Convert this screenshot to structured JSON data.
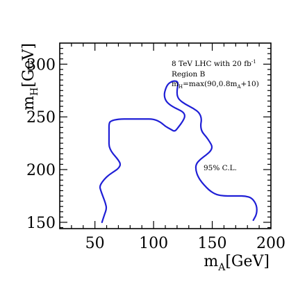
{
  "chart_data": {
    "type": "line",
    "title": "",
    "xlabel": {
      "main": "m",
      "sub": "A",
      "unit": "[GeV]"
    },
    "ylabel": {
      "main": "m",
      "sub": "H",
      "unit": "[GeV]"
    },
    "xlim": [
      20,
      200
    ],
    "ylim": [
      144,
      320
    ],
    "x_ticks": [
      50,
      100,
      150,
      200
    ],
    "y_ticks": [
      150,
      200,
      250,
      300
    ],
    "grid": false,
    "annotations": {
      "line1": {
        "text": "8 TeV LHC with 20 fb",
        "sup": "-1"
      },
      "line2": {
        "text": "Region B"
      },
      "line3": {
        "parts": [
          "m",
          "H",
          "=max(90,0.8m",
          "A",
          "+10)"
        ]
      },
      "cl_label": "95% C.L."
    },
    "series": [
      {
        "color": "#1f1fd6",
        "points": [
          [
            56,
            150
          ],
          [
            58,
            157
          ],
          [
            60,
            163
          ],
          [
            59,
            168
          ],
          [
            57,
            174
          ],
          [
            55,
            180
          ],
          [
            54,
            184
          ],
          [
            56,
            188
          ],
          [
            59,
            192
          ],
          [
            62,
            195
          ],
          [
            66,
            198
          ],
          [
            70,
            201
          ],
          [
            72,
            205
          ],
          [
            70,
            209
          ],
          [
            67,
            213
          ],
          [
            64,
            217
          ],
          [
            62,
            222
          ],
          [
            62,
            227
          ],
          [
            62,
            232
          ],
          [
            62,
            238
          ],
          [
            62,
            243
          ],
          [
            63,
            246
          ],
          [
            70,
            248
          ],
          [
            80,
            248
          ],
          [
            92,
            248
          ],
          [
            100,
            248
          ],
          [
            106,
            245
          ],
          [
            110,
            241
          ],
          [
            115,
            238
          ],
          [
            118,
            236
          ],
          [
            121,
            240
          ],
          [
            125,
            246
          ],
          [
            127,
            251
          ],
          [
            125,
            255
          ],
          [
            119,
            258
          ],
          [
            113,
            262
          ],
          [
            110,
            266
          ],
          [
            109,
            271
          ],
          [
            110,
            276
          ],
          [
            112,
            281
          ],
          [
            116,
            284
          ],
          [
            120,
            284
          ],
          [
            121,
            281
          ],
          [
            120,
            276
          ],
          [
            120,
            270
          ],
          [
            122,
            266
          ],
          [
            127,
            262
          ],
          [
            134,
            258
          ],
          [
            139,
            254
          ],
          [
            141,
            248
          ],
          [
            140,
            242
          ],
          [
            141,
            236
          ],
          [
            145,
            231
          ],
          [
            148,
            226
          ],
          [
            150,
            222
          ],
          [
            149,
            218
          ],
          [
            145,
            214
          ],
          [
            140,
            210
          ],
          [
            136,
            205
          ],
          [
            136,
            199
          ],
          [
            138,
            193
          ],
          [
            141,
            188
          ],
          [
            145,
            183
          ],
          [
            149,
            179
          ],
          [
            154,
            176
          ],
          [
            160,
            175
          ],
          [
            166,
            175
          ],
          [
            172,
            175
          ],
          [
            178,
            175
          ],
          [
            184,
            173
          ],
          [
            188,
            166
          ],
          [
            188,
            158
          ],
          [
            185,
            152
          ]
        ]
      }
    ]
  }
}
